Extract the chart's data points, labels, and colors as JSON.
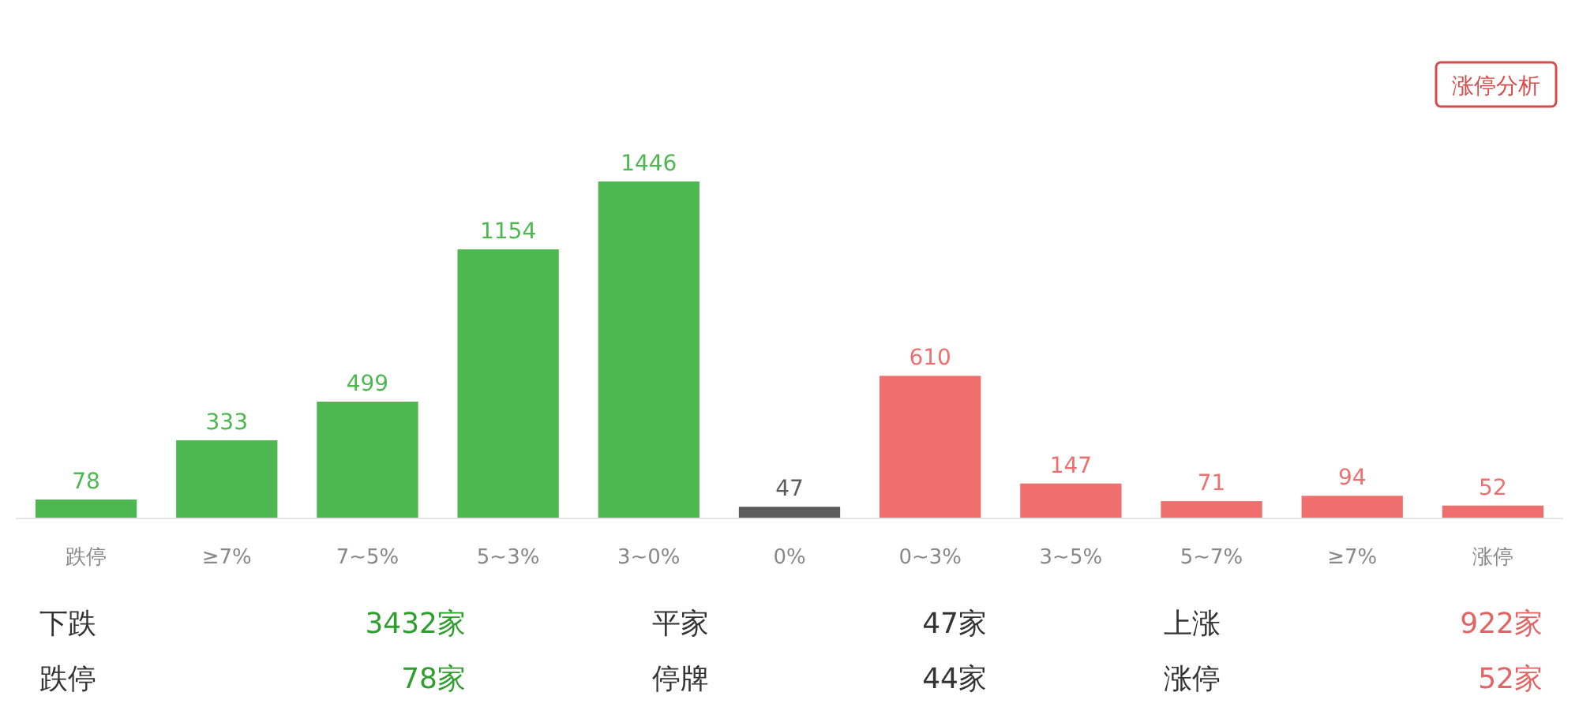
{
  "chart_data": {
    "type": "bar",
    "categories": [
      "跌停",
      "≥7%",
      "7~5%",
      "5~3%",
      "3~0%",
      "0%",
      "0~3%",
      "3~5%",
      "5~7%",
      "≥7%",
      "涨停"
    ],
    "values": [
      78,
      333,
      499,
      1154,
      1446,
      47,
      610,
      147,
      71,
      94,
      52
    ],
    "colors": [
      "#4cb84f",
      "#4cb84f",
      "#4cb84f",
      "#4cb84f",
      "#4cb84f",
      "#5c5c5c",
      "#ef6f6f",
      "#ef6f6f",
      "#ef6f6f",
      "#ef6f6f",
      "#ef6f6f"
    ],
    "data_labels": true,
    "annotations": [
      "涨停分析",
      "下跌",
      "3432家",
      "平家",
      "47家",
      "上涨",
      "922家",
      "跌停",
      "78家",
      "停牌",
      "44家",
      "涨停",
      "52家"
    ]
  }
}
